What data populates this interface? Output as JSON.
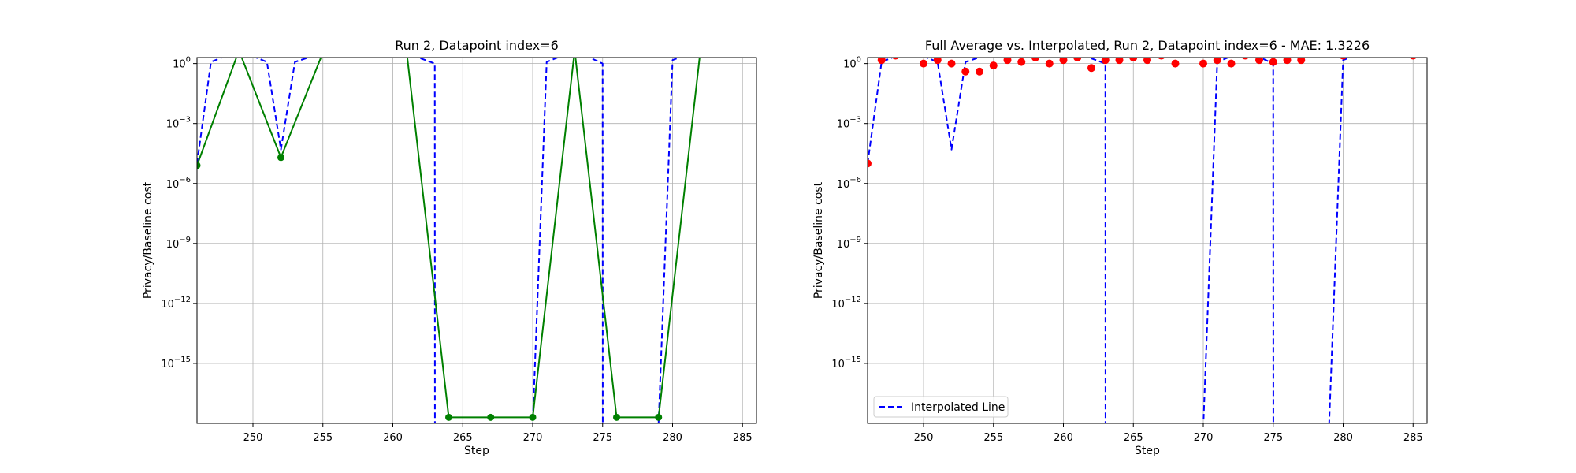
{
  "chart_data": [
    {
      "type": "line",
      "title": "Run 2, Datapoint index=6",
      "xlabel": "Step",
      "ylabel": "Privacy/Baseline cost",
      "yscale": "log",
      "xlim": [
        246,
        286
      ],
      "ylim": [
        1e-18,
        2
      ],
      "xticks": [
        250,
        255,
        260,
        265,
        270,
        275,
        280,
        285
      ],
      "yticks": [
        {
          "value": 1,
          "base": "10",
          "exp": "0"
        },
        {
          "value": 0.001,
          "base": "10",
          "exp": "−3"
        },
        {
          "value": 1e-06,
          "base": "10",
          "exp": "−6"
        },
        {
          "value": 1e-09,
          "base": "10",
          "exp": "−9"
        },
        {
          "value": 1e-12,
          "base": "10",
          "exp": "−12"
        },
        {
          "value": 1e-15,
          "base": "10",
          "exp": "−15"
        }
      ],
      "grid": true,
      "legend": null,
      "series": [
        {
          "style": "dashed",
          "color": "#0000ff",
          "x": [
            246,
            247,
            249,
            251,
            252,
            253,
            255,
            258,
            261,
            263,
            263.01,
            270,
            271,
            273,
            275,
            275.01,
            279,
            280,
            282,
            286
          ],
          "y": [
            1e-05,
            1.2,
            4.5,
            1.2,
            5e-05,
            1.2,
            3.5,
            3.5,
            3.3,
            1.0,
            1e-18,
            1e-18,
            1.2,
            4.5,
            1.0,
            1e-18,
            1e-18,
            1.5,
            5.0,
            5.0
          ]
        },
        {
          "style": "solid",
          "color": "#008000",
          "marker": "circle",
          "x": [
            246,
            249,
            252,
            255,
            258,
            261,
            264,
            267,
            270,
            273,
            276,
            279,
            282,
            285
          ],
          "y": [
            8e-06,
            4.5,
            2e-05,
            3.5,
            3.5,
            3.3,
            2e-18,
            2e-18,
            2e-18,
            4.5,
            2e-18,
            2e-18,
            5.0,
            5.0
          ]
        }
      ]
    },
    {
      "type": "line",
      "title": "Full Average vs. Interpolated, Run 2, Datapoint index=6 - MAE: 1.3226",
      "xlabel": "Step",
      "ylabel": "Privacy/Baseline cost",
      "yscale": "log",
      "xlim": [
        246,
        286
      ],
      "ylim": [
        1e-18,
        2
      ],
      "xticks": [
        250,
        255,
        260,
        265,
        270,
        275,
        280,
        285
      ],
      "yticks": [
        {
          "value": 1,
          "base": "10",
          "exp": "0"
        },
        {
          "value": 0.001,
          "base": "10",
          "exp": "−3"
        },
        {
          "value": 1e-06,
          "base": "10",
          "exp": "−6"
        },
        {
          "value": 1e-09,
          "base": "10",
          "exp": "−9"
        },
        {
          "value": 1e-12,
          "base": "10",
          "exp": "−12"
        },
        {
          "value": 1e-15,
          "base": "10",
          "exp": "−15"
        }
      ],
      "grid": true,
      "legend": {
        "position": "lower left",
        "entries": [
          "Interpolated Line"
        ]
      },
      "series": [
        {
          "name": "Interpolated Line",
          "style": "dashed",
          "color": "#0000ff",
          "x": [
            246,
            247,
            249,
            251,
            252,
            253,
            255,
            258,
            261,
            263,
            263.01,
            265,
            270,
            270.01,
            271,
            273,
            275,
            275.01,
            277,
            279,
            280,
            282,
            286
          ],
          "y": [
            1e-05,
            1.2,
            4.5,
            1.2,
            5e-05,
            1.2,
            3.5,
            3.5,
            3.3,
            1.0,
            1e-18,
            1e-18,
            1e-18,
            1e-18,
            1.2,
            4.5,
            1.0,
            1e-18,
            1e-18,
            1e-18,
            1.5,
            5.0,
            5.0
          ]
        },
        {
          "style": "scatter",
          "color": "#ff0000",
          "marker": "circle",
          "x": [
            246,
            247,
            248,
            249,
            250,
            251,
            252,
            253,
            254,
            255,
            256,
            257,
            258,
            259,
            260,
            261,
            262,
            263,
            264,
            265,
            266,
            267,
            268,
            269,
            270,
            271,
            272,
            273,
            274,
            275,
            276,
            277,
            278,
            279,
            280,
            281,
            282,
            283,
            284,
            285,
            286
          ],
          "y": [
            1e-05,
            1.5,
            2.5,
            3.0,
            1.0,
            1.5,
            1.0,
            0.4,
            0.4,
            0.8,
            1.5,
            1.2,
            2.0,
            1.0,
            1.5,
            2.0,
            0.6,
            1.5,
            1.5,
            2.0,
            1.5,
            2.5,
            1.0,
            3.0,
            1.0,
            1.5,
            1.0,
            2.5,
            1.5,
            1.2,
            1.5,
            1.5,
            3.0,
            3.0,
            2.5,
            4.0,
            4.0,
            4.0,
            3.5,
            2.5,
            3.0
          ]
        }
      ]
    }
  ]
}
